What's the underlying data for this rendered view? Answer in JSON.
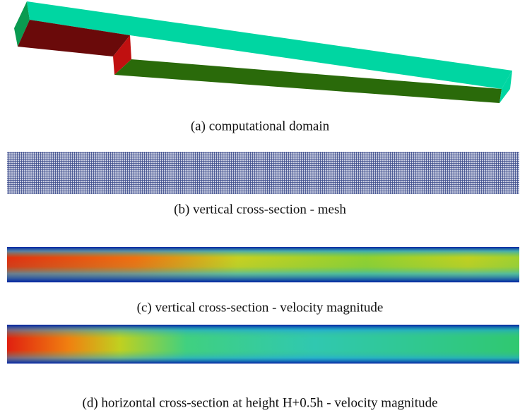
{
  "figures": [
    {
      "caption": "(a) computational domain"
    },
    {
      "caption": "(b) vertical cross-section - mesh"
    },
    {
      "caption": "(c) vertical cross-section - velocity magnitude"
    },
    {
      "caption": "(d) horizontal cross-section at height H+0.5h - velocity magnitude"
    }
  ]
}
